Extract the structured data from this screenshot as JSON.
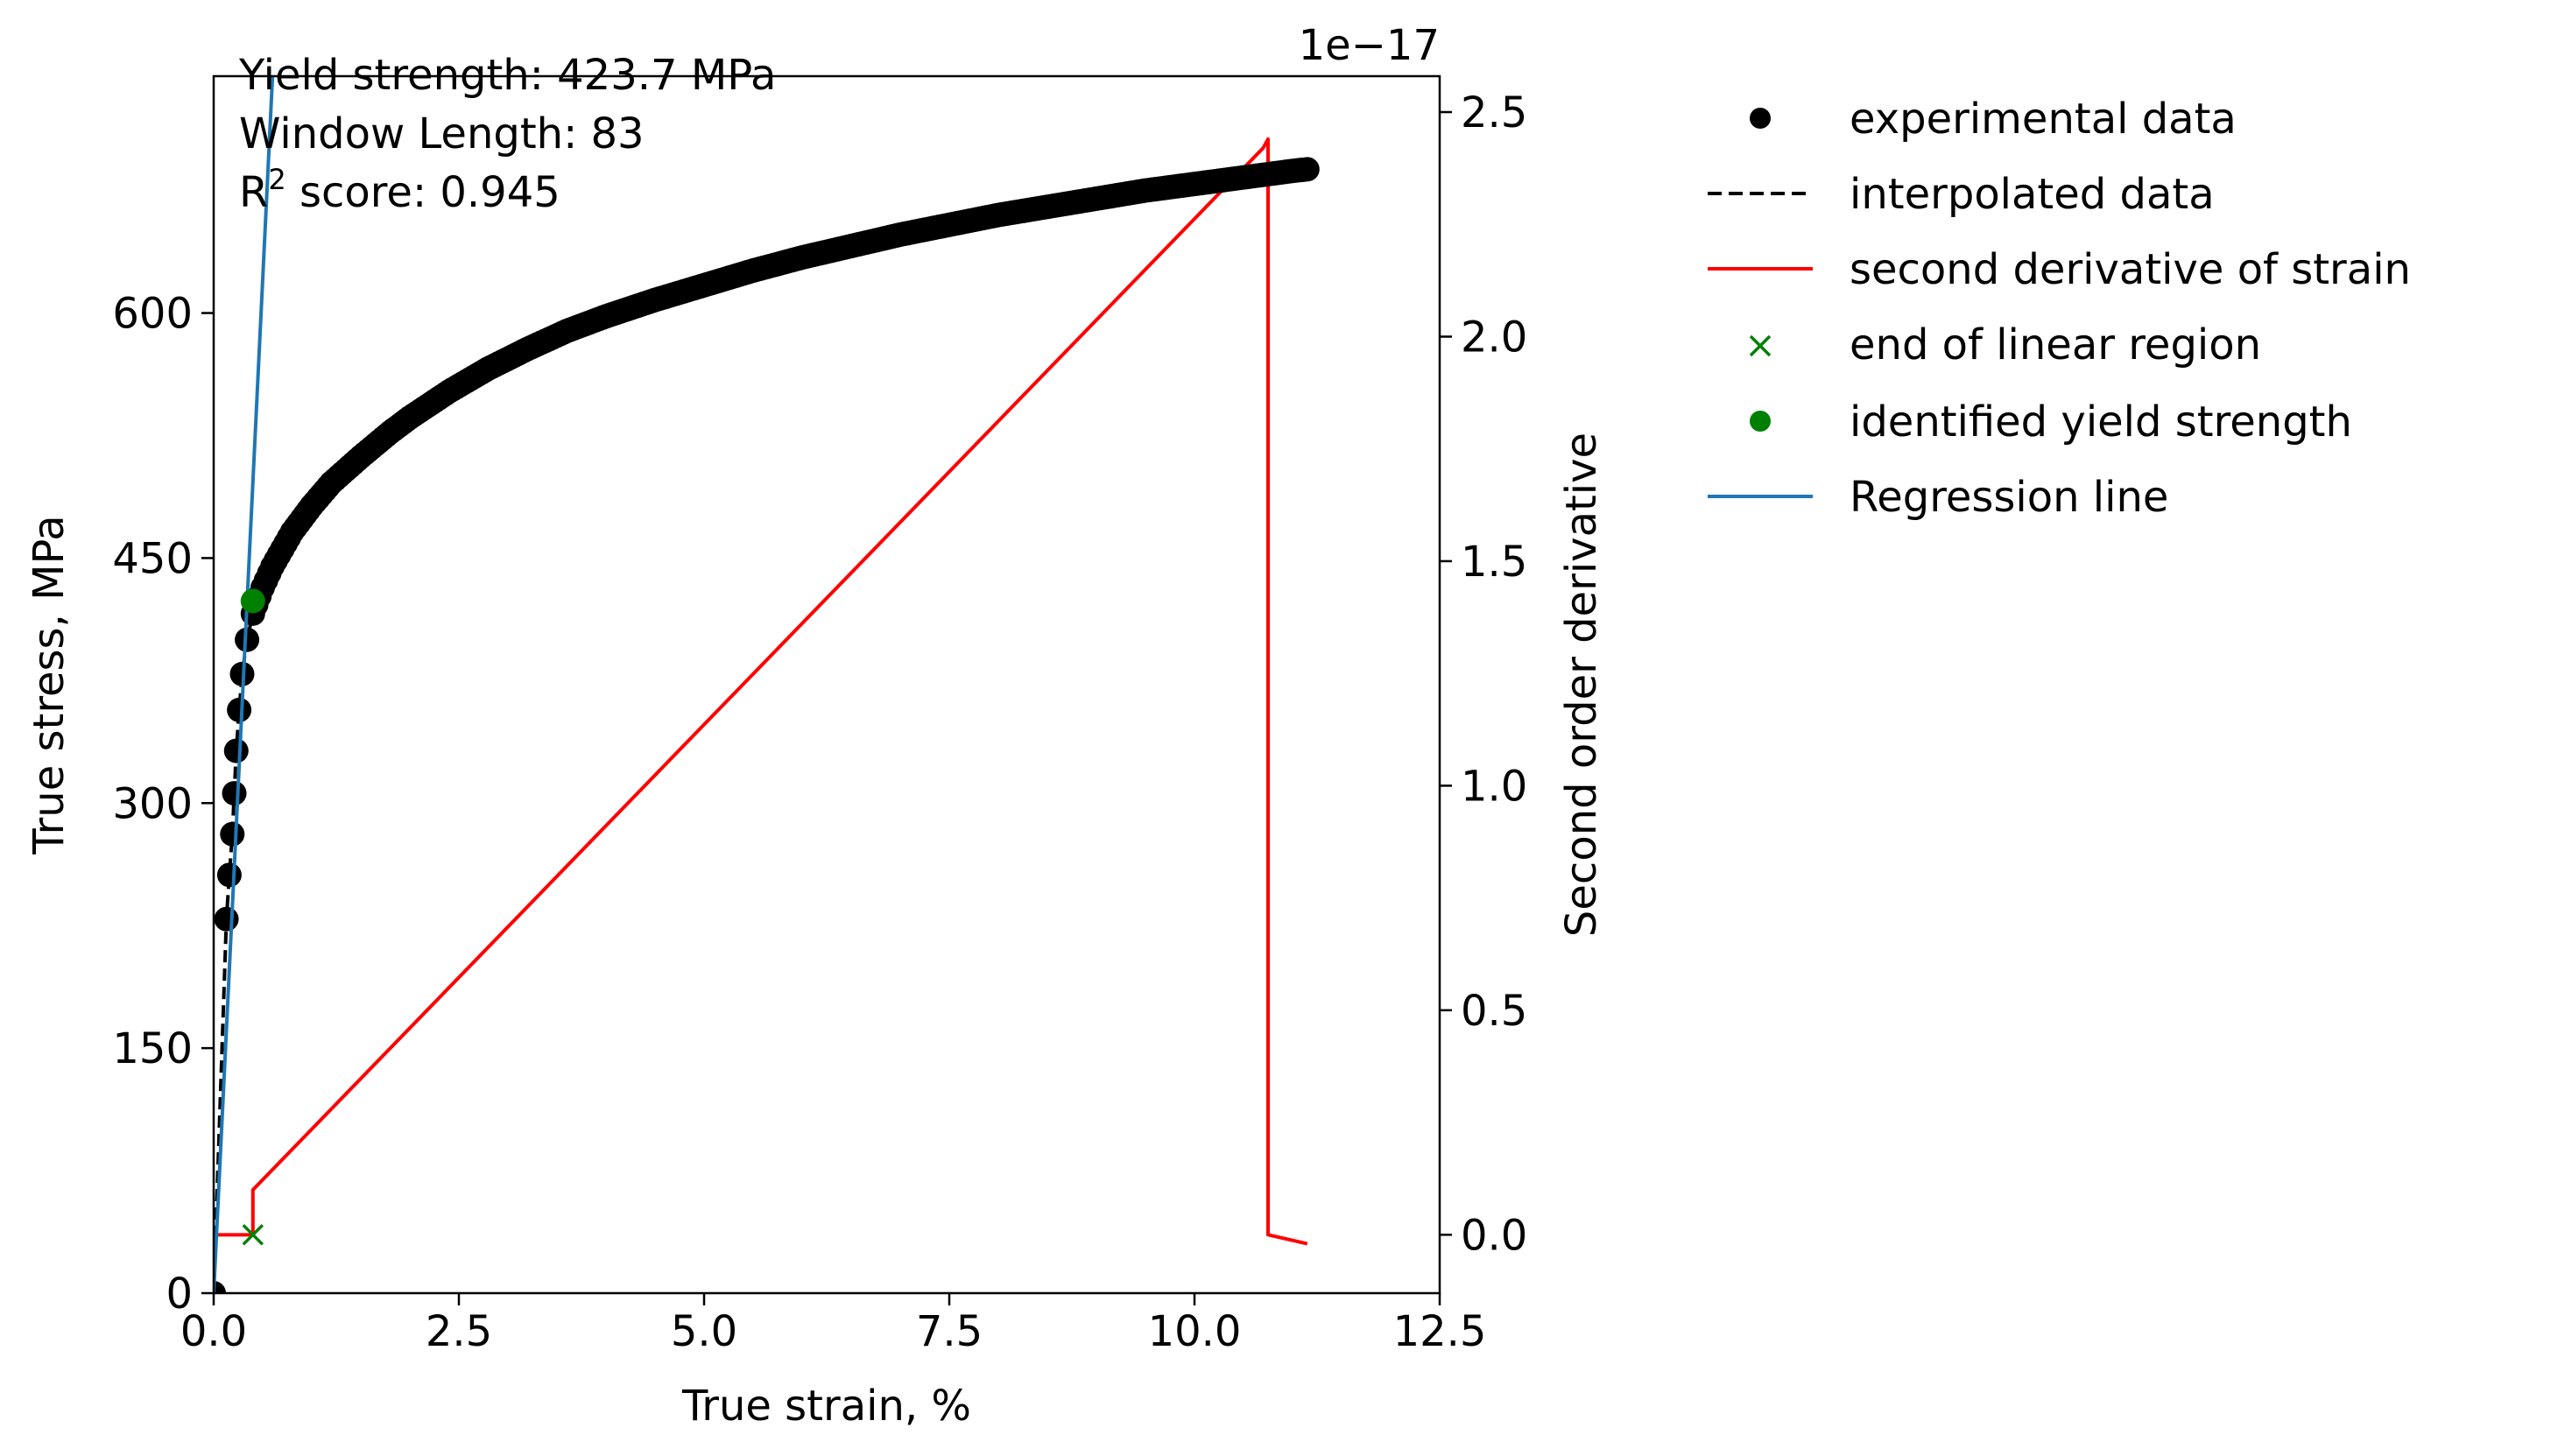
{
  "chart_data": {
    "type": "scatter",
    "title": "",
    "xlabel": "True strain, %",
    "ylabel": "True stress, MPa",
    "ylabel_right": "Second order derivative",
    "right_axis_offset": "1e−17",
    "xlim": [
      0,
      12.5
    ],
    "ylim": [
      0,
      745
    ],
    "ylim_right": [
      -0.13,
      2.58
    ],
    "x_ticks": [
      0,
      2.5,
      5,
      7.5,
      10,
      12.5
    ],
    "x_tick_labels": [
      "0.0",
      "2.5",
      "5.0",
      "7.5",
      "10.0",
      "12.5"
    ],
    "y_ticks": [
      0,
      150,
      300,
      450,
      600
    ],
    "y_tick_labels": [
      "0",
      "150",
      "300",
      "450",
      "600"
    ],
    "y_right_ticks": [
      0,
      0.5,
      1.0,
      1.5,
      2.0,
      2.5
    ],
    "y_right_tick_labels": [
      "0.0",
      "0.5",
      "1.0",
      "1.5",
      "2.0",
      "2.5"
    ],
    "grid": false,
    "legend_position": "outside-right-top",
    "annotations": {
      "line1": "Yield strength: 423.7 MPa",
      "line2": "Window Length: 83",
      "line3_prefix": "R",
      "line3_sup": "2",
      "line3_suffix": " score: 0.945"
    },
    "series": [
      {
        "name": "experimental data",
        "kind": "scatter",
        "color": "#000000",
        "x": [
          0.0,
          0.13,
          0.16,
          0.19,
          0.21,
          0.23,
          0.26,
          0.29,
          0.34,
          0.4,
          0.5,
          0.6,
          0.8,
          1.0,
          1.2,
          1.5,
          1.8,
          2.0,
          2.4,
          2.8,
          3.2,
          3.6,
          4.0,
          4.5,
          5.0,
          5.5,
          6.0,
          6.5,
          7.0,
          7.5,
          8.0,
          8.5,
          9.0,
          9.5,
          10.0,
          10.5,
          11.0,
          11.15
        ],
        "y": [
          0,
          229,
          256,
          281,
          306,
          332,
          357,
          379,
          400,
          416,
          432,
          445,
          466,
          482,
          496,
          512,
          527,
          536,
          552,
          566,
          578,
          589,
          598,
          608,
          617,
          626,
          634,
          641,
          648,
          654,
          660,
          665,
          670,
          675,
          679,
          683,
          687,
          688
        ]
      },
      {
        "name": "interpolated data",
        "kind": "line",
        "dash": "dashed",
        "color": "#000000",
        "x": [
          0.0,
          0.13,
          0.16,
          0.19,
          0.21,
          0.23,
          0.26,
          0.29,
          0.34,
          0.4,
          0.5,
          0.6,
          0.8,
          1.0
        ],
        "y": [
          0,
          229,
          256,
          281,
          306,
          332,
          357,
          379,
          400,
          416,
          432,
          445,
          466,
          482
        ]
      },
      {
        "name": "second derivative of strain",
        "kind": "line",
        "axis": "right",
        "color": "#ff0000",
        "x": [
          0.0,
          0.4,
          0.4,
          10.7,
          10.75,
          10.75,
          11.15
        ],
        "y": [
          0.0,
          0.0,
          0.1,
          2.42,
          2.44,
          0.0,
          -0.02
        ]
      },
      {
        "name": "end of linear region",
        "kind": "cross",
        "axis": "right",
        "color": "#008000",
        "x": [
          0.4
        ],
        "y": [
          0.0
        ]
      },
      {
        "name": "identified yield strength",
        "kind": "dot",
        "color": "#008000",
        "x": [
          0.4
        ],
        "y": [
          423.7
        ]
      },
      {
        "name": "Regression line",
        "kind": "line",
        "color": "#1f77b4",
        "x": [
          0.0,
          0.6
        ],
        "y": [
          0,
          745
        ]
      }
    ]
  }
}
